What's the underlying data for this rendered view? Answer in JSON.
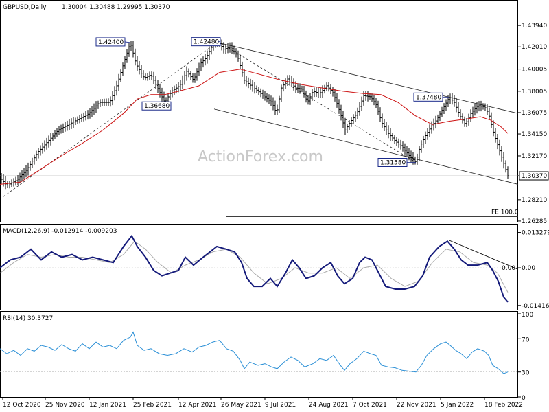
{
  "chart_data": [
    {
      "type": "candlestick",
      "panel": "price",
      "title": "GBPUSD,Daily",
      "ohlc_header": "1.30004 1.30488 1.29995 1.30370",
      "current_price": "1.30370",
      "watermark": "ActionForex.com",
      "ylim": [
        1.2628,
        1.45
      ],
      "y_ticks": [
        "1.43940",
        "1.42010",
        "1.40005",
        "1.38005",
        "1.36075",
        "1.34150",
        "1.32170",
        "1.30370",
        "1.28210",
        "1.26285"
      ],
      "x_ticks": [
        "12 Oct 2020",
        "25 Nov 2020",
        "12 Jan 2021",
        "25 Feb 2021",
        "12 Apr 2021",
        "26 May 2021",
        "9 Jul 2021",
        "24 Aug 2021",
        "7 Oct 2021",
        "22 Nov 2021",
        "5 Jan 2022",
        "18 Feb 2022"
      ],
      "price_path": [
        [
          0,
          1.302
        ],
        [
          10,
          1.295
        ],
        [
          25,
          1.3
        ],
        [
          40,
          1.31
        ],
        [
          55,
          1.325
        ],
        [
          70,
          1.335
        ],
        [
          85,
          1.345
        ],
        [
          100,
          1.35
        ],
        [
          115,
          1.355
        ],
        [
          130,
          1.36
        ],
        [
          145,
          1.37
        ],
        [
          160,
          1.37
        ],
        [
          170,
          1.385
        ],
        [
          180,
          1.405
        ],
        [
          190,
          1.424
        ],
        [
          198,
          1.405
        ],
        [
          210,
          1.392
        ],
        [
          220,
          1.395
        ],
        [
          232,
          1.38
        ],
        [
          240,
          1.37
        ],
        [
          250,
          1.38
        ],
        [
          262,
          1.385
        ],
        [
          272,
          1.398
        ],
        [
          282,
          1.39
        ],
        [
          292,
          1.405
        ],
        [
          300,
          1.41
        ],
        [
          310,
          1.422
        ],
        [
          318,
          1.4248
        ],
        [
          326,
          1.418
        ],
        [
          336,
          1.42
        ],
        [
          346,
          1.412
        ],
        [
          356,
          1.39
        ],
        [
          366,
          1.385
        ],
        [
          376,
          1.38
        ],
        [
          386,
          1.375
        ],
        [
          396,
          1.37
        ],
        [
          403,
          1.36
        ],
        [
          410,
          1.383
        ],
        [
          420,
          1.392
        ],
        [
          430,
          1.383
        ],
        [
          440,
          1.382
        ],
        [
          448,
          1.37
        ],
        [
          456,
          1.38
        ],
        [
          466,
          1.378
        ],
        [
          476,
          1.385
        ],
        [
          486,
          1.378
        ],
        [
          496,
          1.36
        ],
        [
          503,
          1.345
        ],
        [
          510,
          1.352
        ],
        [
          520,
          1.36
        ],
        [
          530,
          1.376
        ],
        [
          540,
          1.375
        ],
        [
          548,
          1.368
        ],
        [
          556,
          1.352
        ],
        [
          566,
          1.342
        ],
        [
          576,
          1.335
        ],
        [
          586,
          1.33
        ],
        [
          596,
          1.322
        ],
        [
          606,
          1.316
        ],
        [
          612,
          1.33
        ],
        [
          620,
          1.34
        ],
        [
          628,
          1.348
        ],
        [
          636,
          1.354
        ],
        [
          646,
          1.365
        ],
        [
          655,
          1.3748
        ],
        [
          662,
          1.37
        ],
        [
          670,
          1.358
        ],
        [
          678,
          1.35
        ],
        [
          686,
          1.36
        ],
        [
          696,
          1.367
        ],
        [
          706,
          1.366
        ],
        [
          712,
          1.36
        ],
        [
          718,
          1.345
        ],
        [
          726,
          1.33
        ],
        [
          734,
          1.315
        ],
        [
          740,
          1.3037
        ]
      ],
      "ma_path": [
        [
          0,
          1.296
        ],
        [
          30,
          1.298
        ],
        [
          60,
          1.31
        ],
        [
          90,
          1.322
        ],
        [
          120,
          1.333
        ],
        [
          150,
          1.345
        ],
        [
          180,
          1.36
        ],
        [
          200,
          1.373
        ],
        [
          220,
          1.377
        ],
        [
          240,
          1.377
        ],
        [
          260,
          1.38
        ],
        [
          290,
          1.385
        ],
        [
          320,
          1.397
        ],
        [
          350,
          1.4
        ],
        [
          380,
          1.395
        ],
        [
          410,
          1.39
        ],
        [
          440,
          1.386
        ],
        [
          470,
          1.383
        ],
        [
          500,
          1.38
        ],
        [
          530,
          1.378
        ],
        [
          555,
          1.377
        ],
        [
          580,
          1.37
        ],
        [
          605,
          1.358
        ],
        [
          630,
          1.35
        ],
        [
          655,
          1.353
        ],
        [
          680,
          1.355
        ],
        [
          700,
          1.357
        ],
        [
          715,
          1.354
        ],
        [
          730,
          1.348
        ],
        [
          740,
          1.342
        ]
      ],
      "labels": [
        {
          "text": "1.42400",
          "x": 190,
          "y": 1.424
        },
        {
          "text": "1.42480",
          "x": 318,
          "y": 1.4248
        },
        {
          "text": "1.36680",
          "x": 230,
          "y": 1.3668
        },
        {
          "text": "1.37480",
          "x": 655,
          "y": 1.3748
        },
        {
          "text": "1.31580",
          "x": 606,
          "y": 1.3158
        }
      ],
      "fe_label": "FE 100.0"
    },
    {
      "type": "line",
      "panel": "macd",
      "title": "MACD(12,26,9) -0.012914 -0.009203",
      "ylim": [
        -0.0155,
        0.0155
      ],
      "y_ticks": [
        "0.013279",
        "0.00",
        "-0.014161"
      ],
      "macd_path": [
        [
          0,
          0.0
        ],
        [
          15,
          0.003
        ],
        [
          30,
          0.004
        ],
        [
          45,
          0.007
        ],
        [
          60,
          0.003
        ],
        [
          75,
          0.006
        ],
        [
          90,
          0.004
        ],
        [
          105,
          0.005
        ],
        [
          120,
          0.003
        ],
        [
          135,
          0.004
        ],
        [
          150,
          0.003
        ],
        [
          165,
          0.002
        ],
        [
          180,
          0.008
        ],
        [
          192,
          0.012
        ],
        [
          200,
          0.008
        ],
        [
          212,
          0.004
        ],
        [
          224,
          -0.001
        ],
        [
          236,
          -0.003
        ],
        [
          248,
          -0.002
        ],
        [
          260,
          -0.001
        ],
        [
          270,
          0.004
        ],
        [
          282,
          0.001
        ],
        [
          296,
          0.004
        ],
        [
          306,
          0.006
        ],
        [
          316,
          0.008
        ],
        [
          330,
          0.007
        ],
        [
          342,
          0.006
        ],
        [
          352,
          0.002
        ],
        [
          360,
          -0.004
        ],
        [
          370,
          -0.007
        ],
        [
          382,
          -0.007
        ],
        [
          394,
          -0.004
        ],
        [
          404,
          -0.007
        ],
        [
          416,
          -0.002
        ],
        [
          426,
          0.003
        ],
        [
          436,
          0.0
        ],
        [
          446,
          -0.004
        ],
        [
          458,
          -0.003
        ],
        [
          470,
          0.0
        ],
        [
          482,
          0.002
        ],
        [
          492,
          -0.003
        ],
        [
          502,
          -0.006
        ],
        [
          514,
          -0.004
        ],
        [
          524,
          0.002
        ],
        [
          532,
          0.004
        ],
        [
          542,
          0.003
        ],
        [
          552,
          -0.002
        ],
        [
          562,
          -0.007
        ],
        [
          576,
          -0.008
        ],
        [
          590,
          -0.008
        ],
        [
          604,
          -0.007
        ],
        [
          616,
          -0.003
        ],
        [
          626,
          0.004
        ],
        [
          640,
          0.008
        ],
        [
          652,
          0.01
        ],
        [
          662,
          0.007
        ],
        [
          672,
          0.003
        ],
        [
          682,
          0.001
        ],
        [
          696,
          0.001
        ],
        [
          710,
          0.002
        ],
        [
          718,
          -0.001
        ],
        [
          726,
          -0.005
        ],
        [
          734,
          -0.011
        ],
        [
          740,
          -0.0129
        ]
      ],
      "signal_path": [
        [
          0,
          -0.002
        ],
        [
          20,
          0.002
        ],
        [
          40,
          0.005
        ],
        [
          60,
          0.004
        ],
        [
          80,
          0.005
        ],
        [
          100,
          0.004
        ],
        [
          120,
          0.004
        ],
        [
          140,
          0.003
        ],
        [
          160,
          0.002
        ],
        [
          180,
          0.005
        ],
        [
          196,
          0.01
        ],
        [
          212,
          0.007
        ],
        [
          230,
          0.002
        ],
        [
          250,
          -0.002
        ],
        [
          270,
          0.001
        ],
        [
          290,
          0.003
        ],
        [
          310,
          0.006
        ],
        [
          330,
          0.007
        ],
        [
          350,
          0.004
        ],
        [
          370,
          -0.002
        ],
        [
          390,
          -0.006
        ],
        [
          410,
          -0.004
        ],
        [
          430,
          0.0
        ],
        [
          450,
          -0.002
        ],
        [
          470,
          -0.002
        ],
        [
          490,
          0.0
        ],
        [
          510,
          -0.004
        ],
        [
          530,
          0.0
        ],
        [
          550,
          0.001
        ],
        [
          570,
          -0.004
        ],
        [
          590,
          -0.007
        ],
        [
          610,
          -0.005
        ],
        [
          630,
          0.002
        ],
        [
          650,
          0.007
        ],
        [
          670,
          0.006
        ],
        [
          690,
          0.002
        ],
        [
          710,
          0.001
        ],
        [
          725,
          -0.002
        ],
        [
          740,
          -0.0092
        ]
      ],
      "zero_label": "0.00"
    },
    {
      "type": "line",
      "panel": "rsi",
      "title": "RSI(14) 30.3727",
      "ylim": [
        0,
        100
      ],
      "y_ticks": [
        "100",
        "70",
        "30",
        "0"
      ],
      "levels": [
        70,
        30
      ],
      "rsi_path": [
        [
          0,
          58
        ],
        [
          10,
          52
        ],
        [
          20,
          56
        ],
        [
          30,
          50
        ],
        [
          40,
          58
        ],
        [
          50,
          55
        ],
        [
          60,
          62
        ],
        [
          70,
          60
        ],
        [
          80,
          56
        ],
        [
          90,
          63
        ],
        [
          100,
          58
        ],
        [
          110,
          55
        ],
        [
          120,
          64
        ],
        [
          130,
          58
        ],
        [
          140,
          66
        ],
        [
          150,
          60
        ],
        [
          160,
          62
        ],
        [
          170,
          58
        ],
        [
          180,
          68
        ],
        [
          190,
          72
        ],
        [
          194,
          78
        ],
        [
          200,
          62
        ],
        [
          210,
          56
        ],
        [
          220,
          58
        ],
        [
          232,
          52
        ],
        [
          244,
          50
        ],
        [
          256,
          52
        ],
        [
          268,
          58
        ],
        [
          280,
          54
        ],
        [
          290,
          60
        ],
        [
          300,
          62
        ],
        [
          310,
          66
        ],
        [
          320,
          68
        ],
        [
          330,
          58
        ],
        [
          340,
          55
        ],
        [
          350,
          44
        ],
        [
          356,
          34
        ],
        [
          364,
          42
        ],
        [
          376,
          38
        ],
        [
          386,
          40
        ],
        [
          396,
          36
        ],
        [
          404,
          34
        ],
        [
          414,
          42
        ],
        [
          424,
          48
        ],
        [
          434,
          44
        ],
        [
          444,
          36
        ],
        [
          456,
          40
        ],
        [
          466,
          46
        ],
        [
          476,
          44
        ],
        [
          486,
          50
        ],
        [
          496,
          38
        ],
        [
          502,
          32
        ],
        [
          510,
          40
        ],
        [
          520,
          46
        ],
        [
          530,
          55
        ],
        [
          540,
          52
        ],
        [
          548,
          50
        ],
        [
          556,
          38
        ],
        [
          566,
          36
        ],
        [
          576,
          35
        ],
        [
          586,
          32
        ],
        [
          596,
          31
        ],
        [
          606,
          30
        ],
        [
          614,
          38
        ],
        [
          622,
          50
        ],
        [
          632,
          58
        ],
        [
          642,
          64
        ],
        [
          650,
          66
        ],
        [
          656,
          62
        ],
        [
          664,
          56
        ],
        [
          672,
          52
        ],
        [
          680,
          46
        ],
        [
          688,
          54
        ],
        [
          696,
          58
        ],
        [
          706,
          55
        ],
        [
          712,
          50
        ],
        [
          718,
          38
        ],
        [
          726,
          34
        ],
        [
          734,
          28
        ],
        [
          740,
          30
        ]
      ]
    }
  ]
}
